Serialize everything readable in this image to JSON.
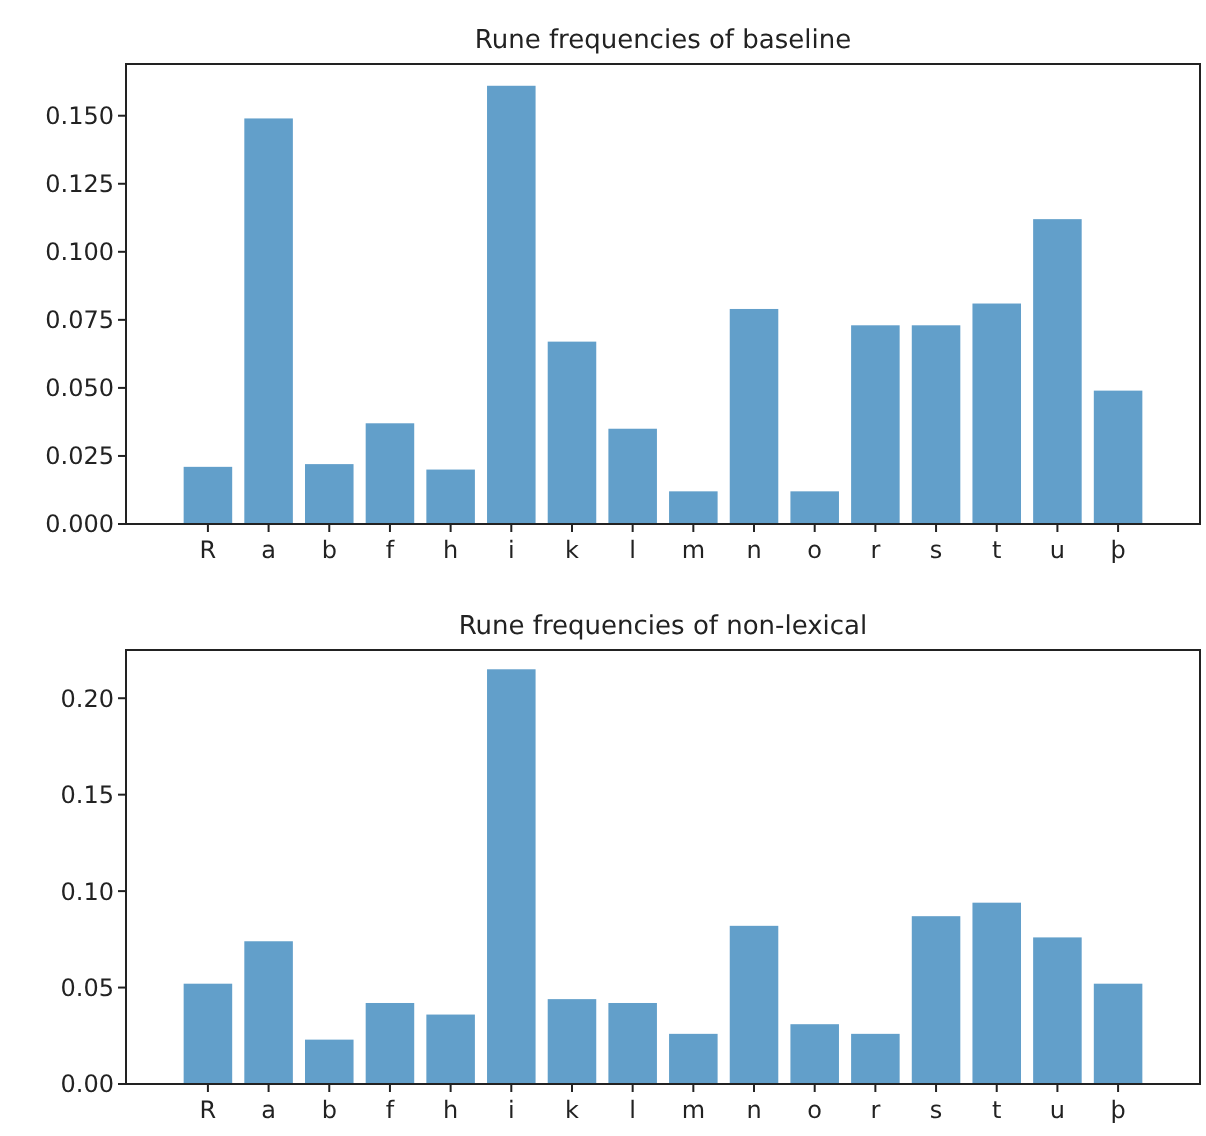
{
  "chart_data": [
    {
      "type": "bar",
      "title": "Rune frequencies of baseline",
      "categories": [
        "R",
        "a",
        "b",
        "f",
        "h",
        "i",
        "k",
        "l",
        "m",
        "n",
        "o",
        "r",
        "s",
        "t",
        "u",
        "þ"
      ],
      "values": [
        0.021,
        0.149,
        0.022,
        0.037,
        0.02,
        0.161,
        0.067,
        0.035,
        0.012,
        0.079,
        0.012,
        0.073,
        0.073,
        0.081,
        0.112,
        0.049
      ],
      "color": "#629fca",
      "ylim": [
        0,
        0.169
      ],
      "yticks": [
        {
          "value": 0,
          "label": "0.000"
        },
        {
          "value": 0.025,
          "label": "0.025"
        },
        {
          "value": 0.05,
          "label": "0.050"
        },
        {
          "value": 0.075,
          "label": "0.075"
        },
        {
          "value": 0.1,
          "label": "0.100"
        },
        {
          "value": 0.125,
          "label": "0.125"
        },
        {
          "value": 0.15,
          "label": "0.150"
        }
      ],
      "grid": false
    },
    {
      "type": "bar",
      "title": "Rune frequencies of non-lexical",
      "categories": [
        "R",
        "a",
        "b",
        "f",
        "h",
        "i",
        "k",
        "l",
        "m",
        "n",
        "o",
        "r",
        "s",
        "t",
        "u",
        "þ"
      ],
      "values": [
        0.052,
        0.074,
        0.023,
        0.042,
        0.036,
        0.215,
        0.044,
        0.042,
        0.026,
        0.082,
        0.031,
        0.026,
        0.087,
        0.094,
        0.076,
        0.052
      ],
      "color": "#629fca",
      "ylim": [
        0,
        0.225
      ],
      "yticks": [
        {
          "value": 0,
          "label": "0.00"
        },
        {
          "value": 0.05,
          "label": "0.05"
        },
        {
          "value": 0.1,
          "label": "0.10"
        },
        {
          "value": 0.15,
          "label": "0.15"
        },
        {
          "value": 0.2,
          "label": "0.20"
        }
      ],
      "grid": false
    }
  ]
}
